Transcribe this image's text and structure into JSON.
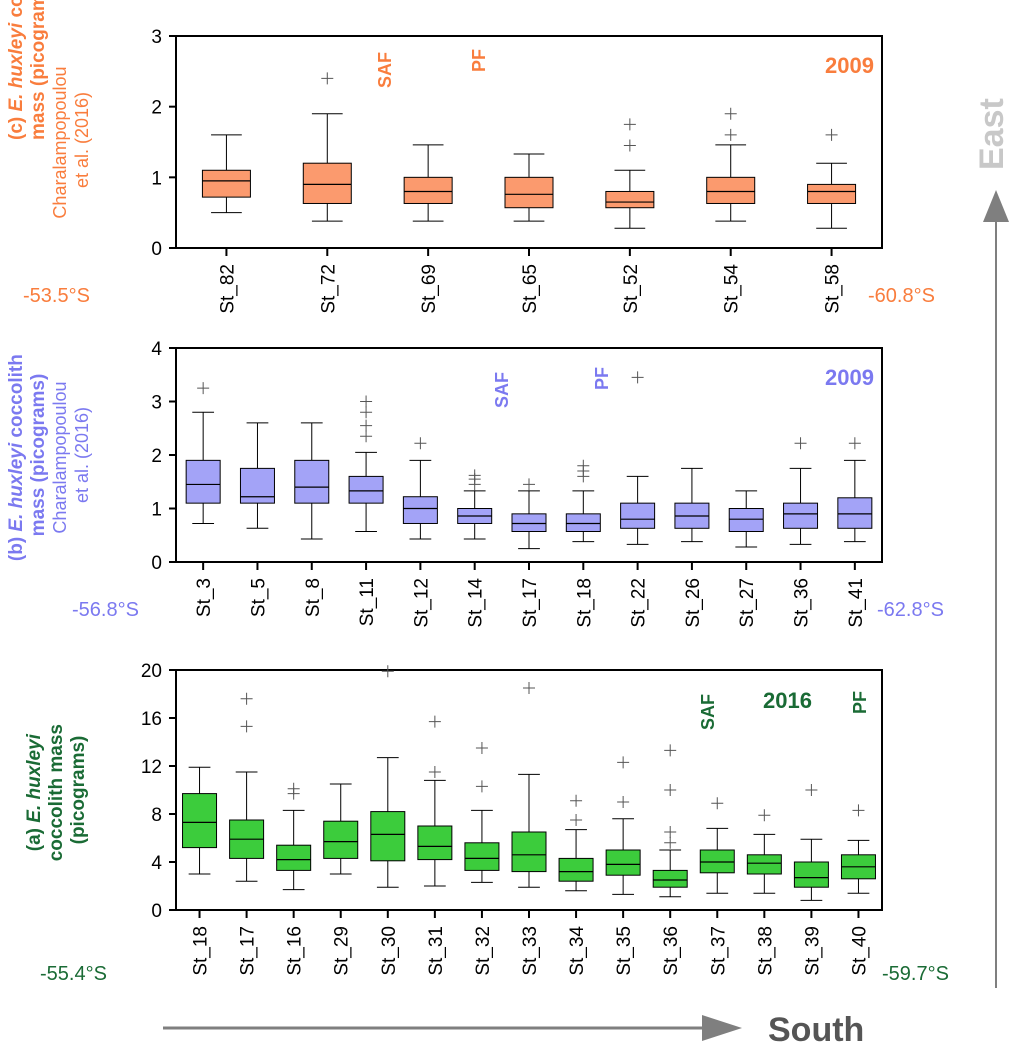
{
  "figure": {
    "south_label": "South",
    "east_label": "East",
    "arrow_color": "#7f7f7f"
  },
  "chart_data": [
    {
      "id": "c",
      "type": "box",
      "year_label": "2009",
      "color": "#f97d3d",
      "fill": "#fb9a6e",
      "ylabel_bold": "(c) E. huxleyi coccolith mass (picograms)",
      "ylabel_sub": "Charalampopoulou et al. (2016)",
      "ylim": [
        0,
        3
      ],
      "yticks": [
        0,
        1,
        2,
        3
      ],
      "lat_left": "-53.5°S",
      "lat_right": "-60.8°S",
      "front_labels": [
        "SAF",
        "PF"
      ],
      "stations": [
        {
          "name": "St_82",
          "whisker_low": 0.5,
          "q1": 0.72,
          "median": 0.95,
          "q3": 1.1,
          "whisker_high": 1.6,
          "outliers": []
        },
        {
          "name": "St_72",
          "whisker_low": 0.38,
          "q1": 0.63,
          "median": 0.9,
          "q3": 1.2,
          "whisker_high": 1.9,
          "outliers": [
            2.4
          ]
        },
        {
          "name": "St_69",
          "whisker_low": 0.38,
          "q1": 0.63,
          "median": 0.8,
          "q3": 1.0,
          "whisker_high": 1.46,
          "outliers": []
        },
        {
          "name": "St_65",
          "whisker_low": 0.38,
          "q1": 0.57,
          "median": 0.76,
          "q3": 1.0,
          "whisker_high": 1.33,
          "outliers": []
        },
        {
          "name": "St_52",
          "whisker_low": 0.28,
          "q1": 0.57,
          "median": 0.65,
          "q3": 0.8,
          "whisker_high": 1.1,
          "outliers": [
            1.45,
            1.75
          ]
        },
        {
          "name": "St_54",
          "whisker_low": 0.38,
          "q1": 0.63,
          "median": 0.8,
          "q3": 1.0,
          "whisker_high": 1.46,
          "outliers": [
            1.6,
            1.9
          ]
        },
        {
          "name": "St_58",
          "whisker_low": 0.28,
          "q1": 0.63,
          "median": 0.8,
          "q3": 0.9,
          "whisker_high": 1.2,
          "outliers": [
            1.6
          ]
        }
      ]
    },
    {
      "id": "b",
      "type": "box",
      "year_label": "2009",
      "color": "#7b79f0",
      "fill": "#a3a3f7",
      "ylabel_bold": "(b) E. huxleyi coccolith mass (picograms)",
      "ylabel_sub": "Charalampopoulou et al. (2016)",
      "ylim": [
        0,
        4
      ],
      "yticks": [
        0,
        1,
        2,
        3,
        4
      ],
      "lat_left": "-56.8°S",
      "lat_right": "-62.8°S",
      "front_labels": [
        "SAF",
        "PF"
      ],
      "stations": [
        {
          "name": "St_3",
          "whisker_low": 0.72,
          "q1": 1.1,
          "median": 1.45,
          "q3": 1.9,
          "whisker_high": 2.8,
          "outliers": [
            3.25
          ]
        },
        {
          "name": "St_5",
          "whisker_low": 0.63,
          "q1": 1.1,
          "median": 1.22,
          "q3": 1.75,
          "whisker_high": 2.6,
          "outliers": []
        },
        {
          "name": "St_8",
          "whisker_low": 0.43,
          "q1": 1.1,
          "median": 1.4,
          "q3": 1.9,
          "whisker_high": 2.6,
          "outliers": []
        },
        {
          "name": "St_11",
          "whisker_low": 0.57,
          "q1": 1.1,
          "median": 1.33,
          "q3": 1.6,
          "whisker_high": 2.05,
          "outliers": [
            2.35,
            2.55,
            2.8,
            3.0
          ]
        },
        {
          "name": "St_12",
          "whisker_low": 0.43,
          "q1": 0.72,
          "median": 1.0,
          "q3": 1.22,
          "whisker_high": 1.9,
          "outliers": [
            2.22
          ]
        },
        {
          "name": "St_14",
          "whisker_low": 0.43,
          "q1": 0.72,
          "median": 0.86,
          "q3": 1.0,
          "whisker_high": 1.33,
          "outliers": [
            1.45,
            1.55,
            1.62
          ]
        },
        {
          "name": "St_17",
          "whisker_low": 0.25,
          "q1": 0.57,
          "median": 0.72,
          "q3": 0.9,
          "whisker_high": 1.33,
          "outliers": [
            1.45
          ]
        },
        {
          "name": "St_18",
          "whisker_low": 0.38,
          "q1": 0.57,
          "median": 0.72,
          "q3": 0.9,
          "whisker_high": 1.33,
          "outliers": [
            1.6,
            1.7,
            1.8
          ]
        },
        {
          "name": "St_22",
          "whisker_low": 0.33,
          "q1": 0.63,
          "median": 0.8,
          "q3": 1.1,
          "whisker_high": 1.6,
          "outliers": [
            3.45
          ]
        },
        {
          "name": "St_26",
          "whisker_low": 0.38,
          "q1": 0.63,
          "median": 0.86,
          "q3": 1.1,
          "whisker_high": 1.75,
          "outliers": []
        },
        {
          "name": "St_27",
          "whisker_low": 0.28,
          "q1": 0.57,
          "median": 0.8,
          "q3": 1.0,
          "whisker_high": 1.33,
          "outliers": []
        },
        {
          "name": "St_36",
          "whisker_low": 0.33,
          "q1": 0.63,
          "median": 0.9,
          "q3": 1.1,
          "whisker_high": 1.75,
          "outliers": [
            2.22
          ]
        },
        {
          "name": "St_41",
          "whisker_low": 0.38,
          "q1": 0.63,
          "median": 0.9,
          "q3": 1.2,
          "whisker_high": 1.9,
          "outliers": [
            2.22
          ]
        }
      ]
    },
    {
      "id": "a",
      "type": "box",
      "year_label": "2016",
      "color": "#1a6b35",
      "fill": "#3ccc3c",
      "ylabel_bold": "(a) E. huxleyi coccolith mass (picograms)",
      "ylabel_sub": "",
      "ylim": [
        0,
        20
      ],
      "yticks": [
        0,
        4,
        8,
        12,
        16,
        20
      ],
      "lat_left": "-55.4°S",
      "lat_right": "-59.7°S",
      "front_labels": [
        "SAF",
        "PF"
      ],
      "stations": [
        {
          "name": "St_18",
          "whisker_low": 3.0,
          "q1": 5.2,
          "median": 7.3,
          "q3": 9.7,
          "whisker_high": 11.9,
          "outliers": []
        },
        {
          "name": "St_17",
          "whisker_low": 2.4,
          "q1": 4.3,
          "median": 5.9,
          "q3": 7.5,
          "whisker_high": 11.5,
          "outliers": [
            15.3,
            17.6
          ]
        },
        {
          "name": "St_16",
          "whisker_low": 1.7,
          "q1": 3.3,
          "median": 4.2,
          "q3": 5.4,
          "whisker_high": 8.3,
          "outliers": [
            9.7,
            10.1
          ]
        },
        {
          "name": "St_29",
          "whisker_low": 3.0,
          "q1": 4.3,
          "median": 5.7,
          "q3": 7.4,
          "whisker_high": 10.5,
          "outliers": []
        },
        {
          "name": "St_30",
          "whisker_low": 1.9,
          "q1": 4.1,
          "median": 6.3,
          "q3": 8.2,
          "whisker_high": 12.7,
          "outliers": [
            19.9
          ]
        },
        {
          "name": "St_31",
          "whisker_low": 2.0,
          "q1": 4.2,
          "median": 5.3,
          "q3": 7.0,
          "whisker_high": 10.8,
          "outliers": [
            11.5,
            15.7
          ]
        },
        {
          "name": "St_32",
          "whisker_low": 2.3,
          "q1": 3.3,
          "median": 4.3,
          "q3": 5.6,
          "whisker_high": 8.3,
          "outliers": [
            10.3,
            13.5
          ]
        },
        {
          "name": "St_33",
          "whisker_low": 1.9,
          "q1": 3.2,
          "median": 4.6,
          "q3": 6.5,
          "whisker_high": 11.3,
          "outliers": [
            18.5
          ]
        },
        {
          "name": "St_34",
          "whisker_low": 1.6,
          "q1": 2.4,
          "median": 3.2,
          "q3": 4.3,
          "whisker_high": 6.7,
          "outliers": [
            7.5,
            9.1
          ]
        },
        {
          "name": "St_35",
          "whisker_low": 1.3,
          "q1": 2.9,
          "median": 3.8,
          "q3": 5.0,
          "whisker_high": 7.6,
          "outliers": [
            9.0,
            12.3
          ]
        },
        {
          "name": "St_36",
          "whisker_low": 1.1,
          "q1": 1.9,
          "median": 2.5,
          "q3": 3.3,
          "whisker_high": 5.0,
          "outliers": [
            5.6,
            6.5,
            10.0,
            13.3
          ]
        },
        {
          "name": "St_37",
          "whisker_low": 1.4,
          "q1": 3.1,
          "median": 4.0,
          "q3": 5.0,
          "whisker_high": 6.8,
          "outliers": [
            8.9
          ]
        },
        {
          "name": "St_38",
          "whisker_low": 1.4,
          "q1": 3.0,
          "median": 3.9,
          "q3": 4.6,
          "whisker_high": 6.3,
          "outliers": [
            7.9
          ]
        },
        {
          "name": "St_39",
          "whisker_low": 0.8,
          "q1": 1.9,
          "median": 2.7,
          "q3": 4.0,
          "whisker_high": 5.9,
          "outliers": [
            10.0
          ]
        },
        {
          "name": "St_40",
          "whisker_low": 1.4,
          "q1": 2.6,
          "median": 3.6,
          "q3": 4.6,
          "whisker_high": 5.8,
          "outliers": [
            8.3
          ]
        }
      ]
    }
  ]
}
